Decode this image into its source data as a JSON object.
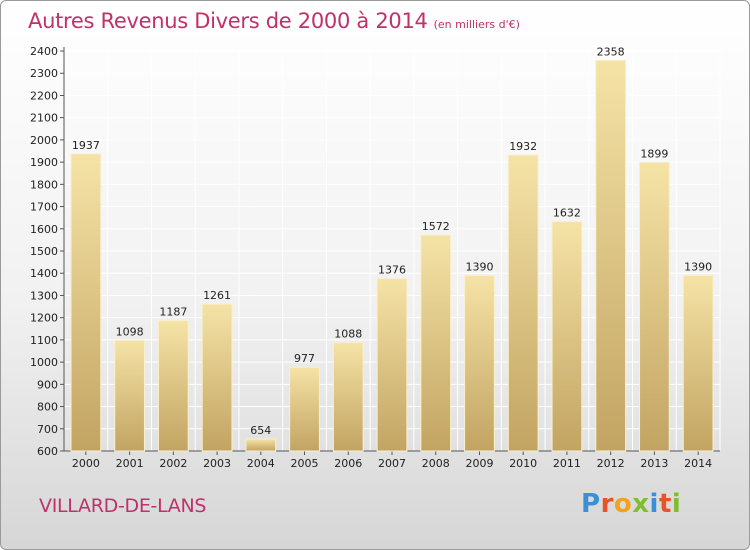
{
  "chart_data": {
    "type": "bar",
    "title": "Autres Revenus Divers de 2000 à 2014",
    "subtitle": "(en milliers d'€)",
    "categories": [
      "2000",
      "2001",
      "2002",
      "2003",
      "2004",
      "2005",
      "2006",
      "2007",
      "2008",
      "2009",
      "2010",
      "2011",
      "2012",
      "2013",
      "2014"
    ],
    "values": [
      1937,
      1098,
      1187,
      1261,
      654,
      977,
      1088,
      1376,
      1572,
      1390,
      1932,
      1632,
      2358,
      1899,
      1390
    ],
    "ylim": [
      600,
      2400
    ],
    "yticks": [
      600,
      700,
      800,
      900,
      1000,
      1100,
      1200,
      1300,
      1400,
      1500,
      1600,
      1700,
      1800,
      1900,
      2000,
      2100,
      2200,
      2300,
      2400
    ],
    "grid": true,
    "bar_color": "#e2c98a"
  },
  "place": "VILLARD-DE-LANS",
  "logo": {
    "text": "Proxiti",
    "letter_colors": [
      "#3c8fd6",
      "#e8532a",
      "#f2a31b",
      "#7fbf2e",
      "#3c8fd6",
      "#e8532a",
      "#7fbf2e"
    ]
  }
}
